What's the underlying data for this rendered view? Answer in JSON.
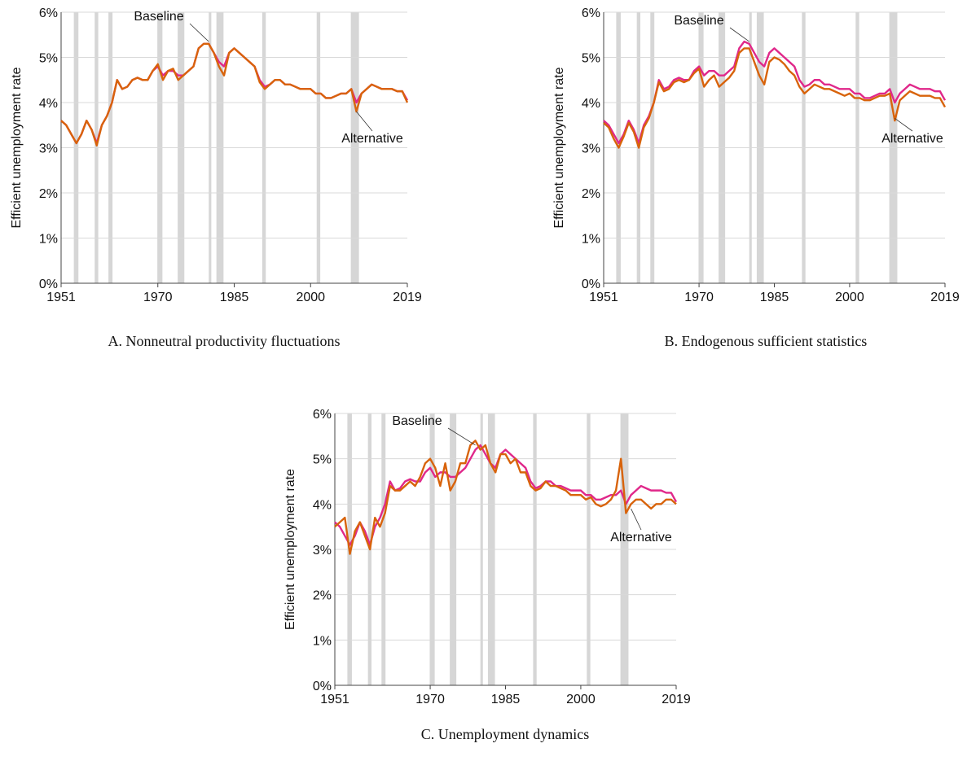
{
  "chart_data": [
    {
      "type": "line",
      "caption": "A. Nonneutral productivity fluctuations",
      "y_label": "Efficient unemployment rate",
      "x": [
        1951,
        1952,
        1953,
        1954,
        1955,
        1956,
        1957,
        1958,
        1959,
        1960,
        1961,
        1962,
        1963,
        1964,
        1965,
        1966,
        1967,
        1968,
        1969,
        1970,
        1971,
        1972,
        1973,
        1974,
        1975,
        1976,
        1977,
        1978,
        1979,
        1980,
        1981,
        1982,
        1983,
        1984,
        1985,
        1986,
        1987,
        1988,
        1989,
        1990,
        1991,
        1992,
        1993,
        1994,
        1995,
        1996,
        1997,
        1998,
        1999,
        2000,
        2001,
        2002,
        2003,
        2004,
        2005,
        2006,
        2007,
        2008,
        2009,
        2010,
        2011,
        2012,
        2013,
        2014,
        2015,
        2016,
        2017,
        2018,
        2019
      ],
      "series": [
        {
          "name": "Baseline",
          "color": "#e0288a",
          "values": [
            3.6,
            3.5,
            3.3,
            3.1,
            3.3,
            3.6,
            3.4,
            3.1,
            3.5,
            3.7,
            4.0,
            4.5,
            4.3,
            4.35,
            4.5,
            4.55,
            4.5,
            4.5,
            4.7,
            4.8,
            4.6,
            4.7,
            4.7,
            4.6,
            4.6,
            4.7,
            4.8,
            5.2,
            5.3,
            5.3,
            5.1,
            4.9,
            4.8,
            5.1,
            5.2,
            5.1,
            5.0,
            4.9,
            4.8,
            4.5,
            4.35,
            4.4,
            4.5,
            4.5,
            4.4,
            4.4,
            4.35,
            4.3,
            4.3,
            4.3,
            4.2,
            4.2,
            4.1,
            4.1,
            4.15,
            4.2,
            4.2,
            4.3,
            4.0,
            4.2,
            4.3,
            4.4,
            4.35,
            4.3,
            4.3,
            4.3,
            4.25,
            4.25,
            4.05
          ]
        },
        {
          "name": "Alternative",
          "color": "#d8630b",
          "values": [
            3.6,
            3.5,
            3.3,
            3.1,
            3.3,
            3.6,
            3.4,
            3.05,
            3.5,
            3.7,
            4.0,
            4.5,
            4.3,
            4.35,
            4.5,
            4.55,
            4.5,
            4.5,
            4.7,
            4.85,
            4.5,
            4.7,
            4.75,
            4.5,
            4.6,
            4.7,
            4.8,
            5.2,
            5.3,
            5.3,
            5.1,
            4.8,
            4.6,
            5.1,
            5.2,
            5.1,
            5.0,
            4.9,
            4.8,
            4.45,
            4.3,
            4.4,
            4.5,
            4.5,
            4.4,
            4.4,
            4.35,
            4.3,
            4.3,
            4.3,
            4.2,
            4.2,
            4.1,
            4.1,
            4.15,
            4.2,
            4.2,
            4.3,
            3.8,
            4.2,
            4.3,
            4.4,
            4.35,
            4.3,
            4.3,
            4.3,
            4.25,
            4.25,
            4.0
          ]
        }
      ],
      "annotations": [
        {
          "text": "Baseline",
          "x": 1980,
          "y": 5.35
        },
        {
          "text": "Alternative",
          "x": 2009,
          "y": 3.8
        }
      ],
      "shaded_periods": [
        [
          1953.5,
          1954.4
        ],
        [
          1957.6,
          1958.3
        ],
        [
          1960.3,
          1961.1
        ],
        [
          1969.9,
          1970.9
        ],
        [
          1973.9,
          1975.2
        ],
        [
          1980.0,
          1980.5
        ],
        [
          1981.5,
          1982.9
        ],
        [
          1990.5,
          1991.2
        ],
        [
          2001.2,
          2001.9
        ],
        [
          2007.9,
          2009.5
        ]
      ],
      "xlim": [
        1951,
        2019
      ],
      "xticks": [
        1951,
        1970,
        1985,
        2000,
        2019
      ],
      "ylim": [
        0,
        6
      ],
      "yticks": [
        {
          "value": 0,
          "label": "0%"
        },
        {
          "value": 1,
          "label": "1%"
        },
        {
          "value": 2,
          "label": "2%"
        },
        {
          "value": 3,
          "label": "3%"
        },
        {
          "value": 4,
          "label": "4%"
        },
        {
          "value": 5,
          "label": "5%"
        },
        {
          "value": 6,
          "label": "6%"
        }
      ],
      "grid": true
    },
    {
      "type": "line",
      "caption": "B. Endogenous sufficient statistics",
      "y_label": "Efficient unemployment rate",
      "x": [
        1951,
        1952,
        1953,
        1954,
        1955,
        1956,
        1957,
        1958,
        1959,
        1960,
        1961,
        1962,
        1963,
        1964,
        1965,
        1966,
        1967,
        1968,
        1969,
        1970,
        1971,
        1972,
        1973,
        1974,
        1975,
        1976,
        1977,
        1978,
        1979,
        1980,
        1981,
        1982,
        1983,
        1984,
        1985,
        1986,
        1987,
        1988,
        1989,
        1990,
        1991,
        1992,
        1993,
        1994,
        1995,
        1996,
        1997,
        1998,
        1999,
        2000,
        2001,
        2002,
        2003,
        2004,
        2005,
        2006,
        2007,
        2008,
        2009,
        2010,
        2011,
        2012,
        2013,
        2014,
        2015,
        2016,
        2017,
        2018,
        2019
      ],
      "series": [
        {
          "name": "Baseline",
          "color": "#e0288a",
          "values": [
            3.6,
            3.5,
            3.3,
            3.1,
            3.3,
            3.6,
            3.4,
            3.1,
            3.5,
            3.7,
            4.0,
            4.5,
            4.3,
            4.35,
            4.5,
            4.55,
            4.5,
            4.5,
            4.7,
            4.8,
            4.6,
            4.7,
            4.7,
            4.6,
            4.6,
            4.7,
            4.8,
            5.2,
            5.35,
            5.3,
            5.1,
            4.9,
            4.8,
            5.1,
            5.2,
            5.1,
            5.0,
            4.9,
            4.8,
            4.5,
            4.35,
            4.4,
            4.5,
            4.5,
            4.4,
            4.4,
            4.35,
            4.3,
            4.3,
            4.3,
            4.2,
            4.2,
            4.1,
            4.1,
            4.15,
            4.2,
            4.2,
            4.3,
            4.0,
            4.2,
            4.3,
            4.4,
            4.35,
            4.3,
            4.3,
            4.3,
            4.25,
            4.25,
            4.05
          ]
        },
        {
          "name": "Alternative",
          "color": "#d8630b",
          "values": [
            3.55,
            3.45,
            3.2,
            3.0,
            3.25,
            3.55,
            3.35,
            3.0,
            3.45,
            3.65,
            4.0,
            4.45,
            4.25,
            4.3,
            4.45,
            4.5,
            4.45,
            4.5,
            4.65,
            4.75,
            4.35,
            4.5,
            4.6,
            4.35,
            4.45,
            4.55,
            4.7,
            5.1,
            5.2,
            5.2,
            4.9,
            4.6,
            4.4,
            4.9,
            5.0,
            4.95,
            4.85,
            4.7,
            4.6,
            4.35,
            4.2,
            4.3,
            4.4,
            4.35,
            4.3,
            4.3,
            4.25,
            4.2,
            4.15,
            4.2,
            4.1,
            4.1,
            4.05,
            4.05,
            4.1,
            4.15,
            4.15,
            4.2,
            3.6,
            4.05,
            4.15,
            4.25,
            4.2,
            4.15,
            4.15,
            4.15,
            4.1,
            4.1,
            3.9
          ]
        }
      ],
      "annotations": [
        {
          "text": "Baseline",
          "x": 1980,
          "y": 5.35
        },
        {
          "text": "Alternative",
          "x": 2009,
          "y": 3.65
        }
      ],
      "shaded_periods": [
        [
          1953.5,
          1954.4
        ],
        [
          1957.6,
          1958.3
        ],
        [
          1960.3,
          1961.1
        ],
        [
          1969.9,
          1970.9
        ],
        [
          1973.9,
          1975.2
        ],
        [
          1980.0,
          1980.5
        ],
        [
          1981.5,
          1982.9
        ],
        [
          1990.5,
          1991.2
        ],
        [
          2001.2,
          2001.9
        ],
        [
          2007.9,
          2009.5
        ]
      ],
      "xlim": [
        1951,
        2019
      ],
      "xticks": [
        1951,
        1970,
        1985,
        2000,
        2019
      ],
      "ylim": [
        0,
        6
      ],
      "yticks": [
        {
          "value": 0,
          "label": "0%"
        },
        {
          "value": 1,
          "label": "1%"
        },
        {
          "value": 2,
          "label": "2%"
        },
        {
          "value": 3,
          "label": "3%"
        },
        {
          "value": 4,
          "label": "4%"
        },
        {
          "value": 5,
          "label": "5%"
        },
        {
          "value": 6,
          "label": "6%"
        }
      ],
      "grid": true
    },
    {
      "type": "line",
      "caption": "C. Unemployment dynamics",
      "y_label": "Efficient unemployment rate",
      "x": [
        1951,
        1952,
        1953,
        1954,
        1955,
        1956,
        1957,
        1958,
        1959,
        1960,
        1961,
        1962,
        1963,
        1964,
        1965,
        1966,
        1967,
        1968,
        1969,
        1970,
        1971,
        1972,
        1973,
        1974,
        1975,
        1976,
        1977,
        1978,
        1979,
        1980,
        1981,
        1982,
        1983,
        1984,
        1985,
        1986,
        1987,
        1988,
        1989,
        1990,
        1991,
        1992,
        1993,
        1994,
        1995,
        1996,
        1997,
        1998,
        1999,
        2000,
        2001,
        2002,
        2003,
        2004,
        2005,
        2006,
        2007,
        2008,
        2009,
        2010,
        2011,
        2012,
        2013,
        2014,
        2015,
        2016,
        2017,
        2018,
        2019
      ],
      "series": [
        {
          "name": "Baseline",
          "color": "#e0288a",
          "values": [
            3.6,
            3.5,
            3.3,
            3.1,
            3.3,
            3.6,
            3.4,
            3.1,
            3.5,
            3.7,
            4.0,
            4.5,
            4.3,
            4.35,
            4.5,
            4.55,
            4.5,
            4.5,
            4.7,
            4.8,
            4.6,
            4.7,
            4.7,
            4.6,
            4.6,
            4.7,
            4.8,
            5.0,
            5.2,
            5.3,
            5.1,
            4.9,
            4.8,
            5.1,
            5.2,
            5.1,
            5.0,
            4.9,
            4.8,
            4.5,
            4.35,
            4.4,
            4.5,
            4.5,
            4.4,
            4.4,
            4.35,
            4.3,
            4.3,
            4.3,
            4.2,
            4.2,
            4.1,
            4.1,
            4.15,
            4.2,
            4.2,
            4.3,
            4.0,
            4.2,
            4.3,
            4.4,
            4.35,
            4.3,
            4.3,
            4.3,
            4.25,
            4.25,
            4.05
          ]
        },
        {
          "name": "Alternative",
          "color": "#d8630b",
          "values": [
            3.5,
            3.6,
            3.7,
            2.9,
            3.4,
            3.6,
            3.3,
            3.0,
            3.7,
            3.5,
            3.8,
            4.4,
            4.3,
            4.3,
            4.4,
            4.5,
            4.4,
            4.6,
            4.9,
            5.0,
            4.8,
            4.4,
            4.9,
            4.3,
            4.5,
            4.9,
            4.9,
            5.3,
            5.4,
            5.2,
            5.3,
            4.9,
            4.7,
            5.1,
            5.1,
            4.9,
            5.0,
            4.7,
            4.7,
            4.4,
            4.3,
            4.35,
            4.5,
            4.4,
            4.4,
            4.35,
            4.3,
            4.2,
            4.2,
            4.2,
            4.1,
            4.15,
            4.0,
            3.95,
            4.0,
            4.1,
            4.3,
            5.0,
            3.8,
            4.0,
            4.1,
            4.1,
            4.0,
            3.9,
            4.0,
            4.0,
            4.1,
            4.1,
            4.0
          ]
        }
      ],
      "annotations": [
        {
          "text": "Baseline",
          "x": 1979,
          "y": 5.3
        },
        {
          "text": "Alternative",
          "x": 2010,
          "y": 3.9
        }
      ],
      "shaded_periods": [
        [
          1953.5,
          1954.4
        ],
        [
          1957.6,
          1958.3
        ],
        [
          1960.3,
          1961.1
        ],
        [
          1969.9,
          1970.9
        ],
        [
          1973.9,
          1975.2
        ],
        [
          1980.0,
          1980.5
        ],
        [
          1981.5,
          1982.9
        ],
        [
          1990.5,
          1991.2
        ],
        [
          2001.2,
          2001.9
        ],
        [
          2007.9,
          2009.5
        ]
      ],
      "xlim": [
        1951,
        2019
      ],
      "xticks": [
        1951,
        1970,
        1985,
        2000,
        2019
      ],
      "ylim": [
        0,
        6
      ],
      "yticks": [
        {
          "value": 0,
          "label": "0%"
        },
        {
          "value": 1,
          "label": "1%"
        },
        {
          "value": 2,
          "label": "2%"
        },
        {
          "value": 3,
          "label": "3%"
        },
        {
          "value": 4,
          "label": "4%"
        },
        {
          "value": 5,
          "label": "5%"
        },
        {
          "value": 6,
          "label": "6%"
        }
      ],
      "grid": true
    }
  ]
}
